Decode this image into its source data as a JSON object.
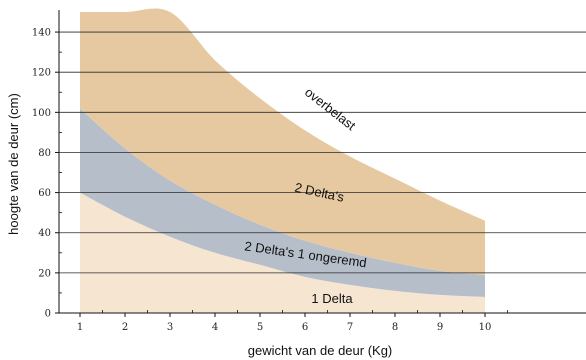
{
  "chart_data": {
    "type": "area",
    "xlabel": "gewicht van de deur (Kg)",
    "ylabel": "hoogte van de deur (cm)",
    "xlim": [
      0,
      11.5
    ],
    "ylim": [
      0,
      150
    ],
    "x_ticks": [
      1,
      2,
      3,
      4,
      5,
      6,
      7,
      8,
      9,
      10
    ],
    "y_ticks": [
      0,
      20,
      40,
      60,
      80,
      100,
      120,
      140
    ],
    "grid": "horizontal",
    "regions": [
      {
        "name": "1 Delta",
        "color": "#f6e6d1",
        "x": [
          1,
          2,
          3,
          4,
          5,
          6,
          7,
          8,
          9,
          10
        ],
        "lower": [
          0,
          0,
          0,
          0,
          0,
          0,
          0,
          0,
          0,
          0
        ],
        "upper": [
          60,
          48,
          38,
          30,
          24,
          18,
          14,
          11,
          9,
          8
        ]
      },
      {
        "name": "2 Delta's 1 ongeremd",
        "color": "#b6bfc9",
        "x": [
          1,
          2,
          3,
          4,
          5,
          6,
          7,
          8,
          9,
          10
        ],
        "lower": [
          60,
          48,
          38,
          30,
          24,
          18,
          14,
          11,
          9,
          8
        ],
        "upper": [
          102,
          82,
          66,
          54,
          44,
          36,
          30,
          25,
          21,
          19
        ]
      },
      {
        "name": "2 Delta's",
        "color": "#e7c9a1",
        "x": [
          1,
          2,
          3,
          4,
          5,
          6,
          7,
          8,
          9,
          10
        ],
        "lower": [
          102,
          82,
          66,
          54,
          44,
          36,
          30,
          25,
          21,
          19
        ],
        "upper": [
          150,
          150,
          150,
          126,
          107,
          91,
          78,
          67,
          56,
          46
        ]
      }
    ],
    "annotations": [
      {
        "text": "overbelast",
        "x": 6.5,
        "y": 100,
        "rotate": 38
      },
      {
        "text": "2 Delta's",
        "x": 6.3,
        "y": 58,
        "rotate": 12
      },
      {
        "text": "2 Delta's 1 ongeremd",
        "x": 6.0,
        "y": 27,
        "rotate": 8
      },
      {
        "text": "1 Delta",
        "x": 6.6,
        "y": 5,
        "rotate": 0
      }
    ]
  }
}
